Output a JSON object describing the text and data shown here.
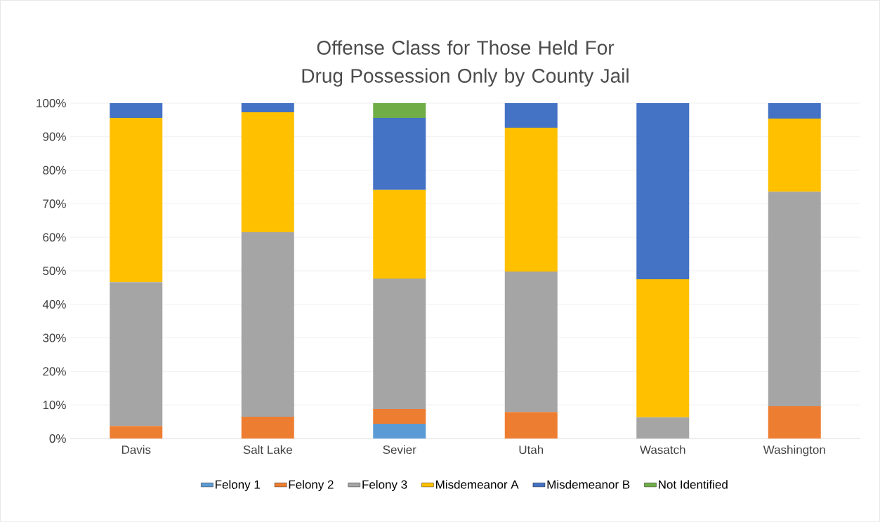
{
  "chart_data": {
    "type": "bar",
    "stacked": true,
    "title": "Offense Class for Those Held For Drug Possession Only by County Jail",
    "categories": [
      "Davis",
      "Salt Lake",
      "Sevier",
      "Utah",
      "Wasatch",
      "Washington"
    ],
    "series": [
      {
        "name": "Felony 1",
        "color": "#5b9bd5",
        "values": [
          0,
          0,
          4.4,
          0,
          0,
          0
        ]
      },
      {
        "name": "Felony 2",
        "color": "#ed7d31",
        "values": [
          3.7,
          6.5,
          4.4,
          7.9,
          0,
          9.6
        ]
      },
      {
        "name": "Felony 3",
        "color": "#a5a5a5",
        "values": [
          42.9,
          55.0,
          38.9,
          41.9,
          6.3,
          64.0
        ]
      },
      {
        "name": "Misdemeanor A",
        "color": "#ffc000",
        "values": [
          49.0,
          35.8,
          26.4,
          42.9,
          41.2,
          21.8
        ]
      },
      {
        "name": "Misdemeanor B",
        "color": "#4472c4",
        "values": [
          4.4,
          2.7,
          21.5,
          7.3,
          52.5,
          4.6
        ]
      },
      {
        "name": "Not Identified",
        "color": "#70ad47",
        "values": [
          0,
          0,
          4.4,
          0,
          0,
          0
        ]
      }
    ],
    "ylim": [
      0,
      100
    ],
    "yticks": [
      {
        "value": 0,
        "label": "0%"
      },
      {
        "value": 10,
        "label": "10%"
      },
      {
        "value": 20,
        "label": "20%"
      },
      {
        "value": 30,
        "label": "30%"
      },
      {
        "value": 40,
        "label": "40%"
      },
      {
        "value": 50,
        "label": "50%"
      },
      {
        "value": 60,
        "label": "60%"
      },
      {
        "value": 70,
        "label": "70%"
      },
      {
        "value": 80,
        "label": "80%"
      },
      {
        "value": 90,
        "label": "90%"
      },
      {
        "value": 100,
        "label": "100%"
      }
    ],
    "grid": "y",
    "legend": "bottom"
  }
}
